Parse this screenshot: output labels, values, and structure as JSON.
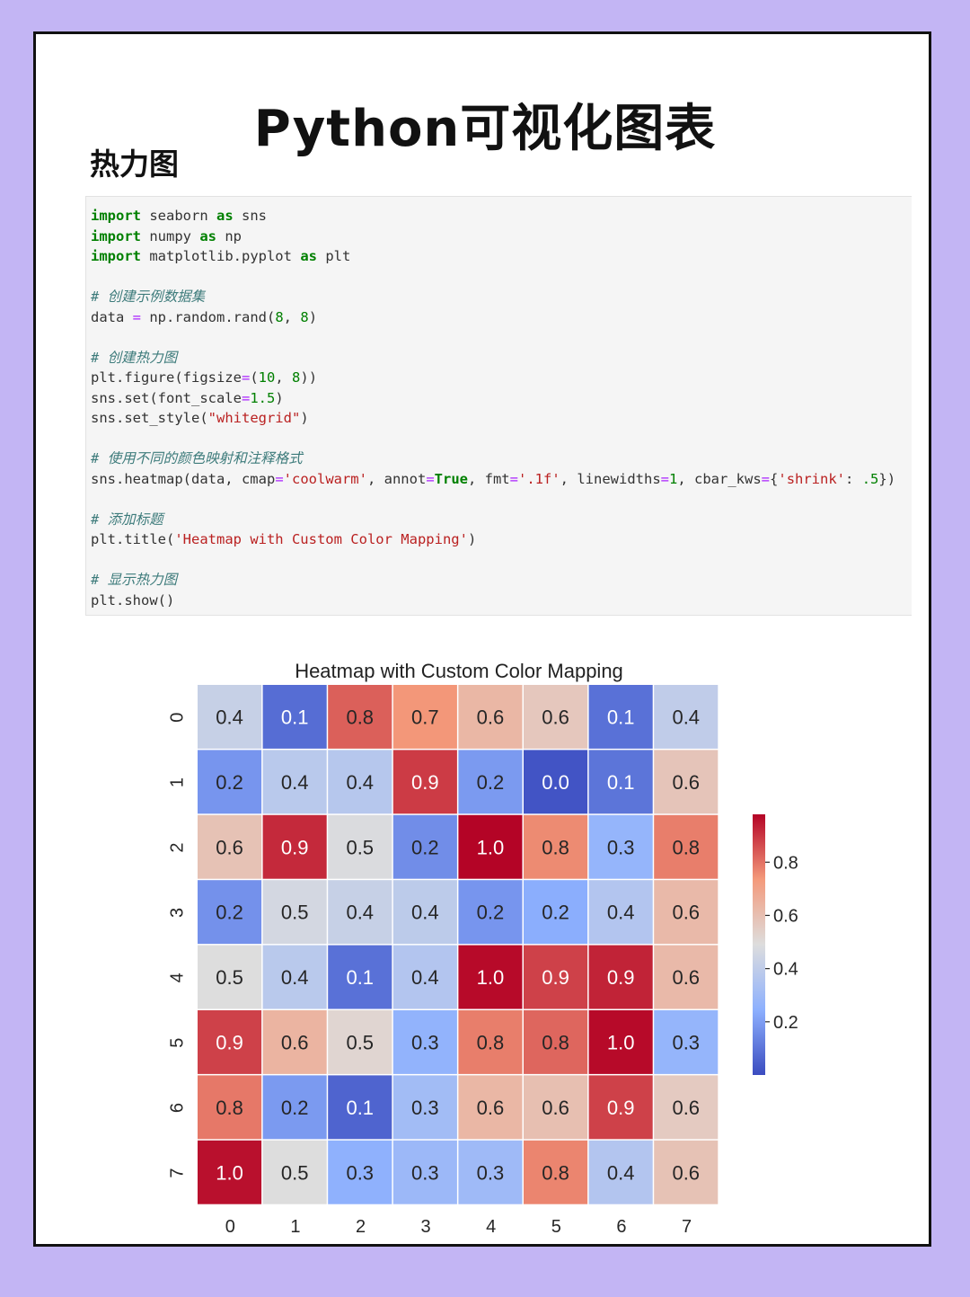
{
  "page": {
    "title": "Python可视化图表",
    "section": "热力图"
  },
  "code": {
    "imports": [
      {
        "kw": "import",
        "mid": " seaborn ",
        "kw2": "as",
        "tail": " sns"
      },
      {
        "kw": "import",
        "mid": " numpy ",
        "kw2": "as",
        "tail": " np"
      },
      {
        "kw": "import",
        "mid": " matplotlib.pyplot ",
        "kw2": "as",
        "tail": " plt"
      }
    ],
    "comment_data": "# 创建示例数据集",
    "line_data": {
      "a": "data ",
      "b": "=",
      "c": " np.random.rand(",
      "d": "8",
      "e": ", ",
      "f": "8",
      "g": ")"
    },
    "comment_heatmap": "# 创建热力图",
    "line_figure": {
      "a": "plt.figure(figsize",
      "b": "=",
      "c": "(",
      "d": "10",
      "e": ", ",
      "f": "8",
      "g": "))"
    },
    "line_set": {
      "a": "sns.set(font_scale",
      "b": "=",
      "c": "1.5",
      "d": ")"
    },
    "line_style": {
      "a": "sns.set_style(",
      "b": "\"whitegrid\"",
      "c": ")"
    },
    "comment_cmap": "# 使用不同的颜色映射和注释格式",
    "line_heatmap": {
      "a": "sns.heatmap(data, cmap",
      "b": "=",
      "c": "'coolwarm'",
      "d": ", annot",
      "e": "=",
      "f": "True",
      "g": ", fmt",
      "h": "=",
      "i": "'.1f'",
      "j": ", linewidths",
      "k": "=",
      "l": "1",
      "m": ", cbar_kws",
      "n": "=",
      "o": "{",
      "p": "'shrink'",
      "q": ": ",
      "r": ".5",
      "s": "})"
    },
    "comment_title": "# 添加标题",
    "line_title": {
      "a": "plt.title(",
      "b": "'Heatmap with Custom Color Mapping'",
      "c": ")"
    },
    "comment_show": "# 显示热力图",
    "line_show": "plt.show()"
  },
  "chart_data": {
    "type": "heatmap",
    "title": "Heatmap with Custom Color Mapping",
    "x_labels": [
      "0",
      "1",
      "2",
      "3",
      "4",
      "5",
      "6",
      "7"
    ],
    "y_labels": [
      "0",
      "1",
      "2",
      "3",
      "4",
      "5",
      "6",
      "7"
    ],
    "values": [
      [
        0.42,
        0.08,
        0.83,
        0.74,
        0.63,
        0.57,
        0.09,
        0.4
      ],
      [
        0.18,
        0.38,
        0.37,
        0.89,
        0.19,
        0.02,
        0.1,
        0.58
      ],
      [
        0.59,
        0.92,
        0.48,
        0.16,
        0.98,
        0.76,
        0.27,
        0.78
      ],
      [
        0.17,
        0.46,
        0.42,
        0.39,
        0.18,
        0.24,
        0.36,
        0.62
      ],
      [
        0.49,
        0.38,
        0.09,
        0.36,
        0.97,
        0.88,
        0.93,
        0.62
      ],
      [
        0.88,
        0.64,
        0.52,
        0.26,
        0.78,
        0.82,
        0.97,
        0.27
      ],
      [
        0.79,
        0.19,
        0.06,
        0.31,
        0.63,
        0.6,
        0.88,
        0.56
      ],
      [
        0.96,
        0.49,
        0.25,
        0.29,
        0.3,
        0.77,
        0.36,
        0.59
      ]
    ],
    "annotation_format": ".1f",
    "colormap": "coolwarm",
    "colorbar": {
      "min": 0.0,
      "max": 0.98,
      "ticks": [
        0.2,
        0.4,
        0.6,
        0.8
      ],
      "tick_labels": [
        "0.2",
        "0.4",
        "0.6",
        "0.8"
      ]
    }
  },
  "colors": {
    "background": "#c3b5f4",
    "card": "#ffffff",
    "code_bg": "#f5f5f5"
  }
}
